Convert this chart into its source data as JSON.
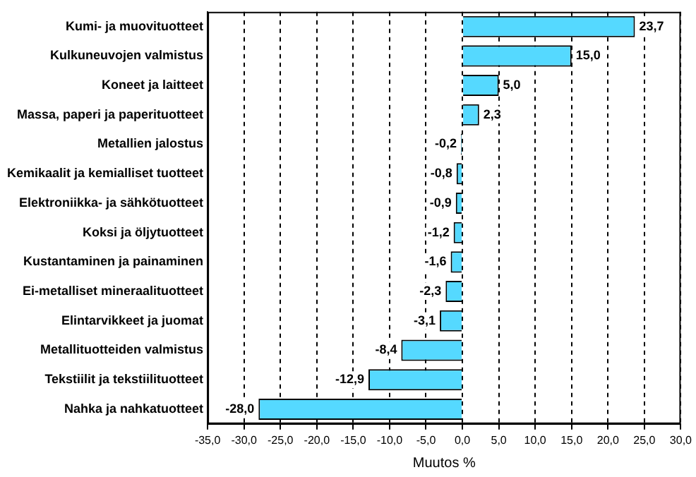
{
  "chart_data": {
    "type": "bar",
    "orientation": "horizontal",
    "xlabel": "Muutos %",
    "categories": [
      "Kumi- ja muovituotteet",
      "Kulkuneuvojen valmistus",
      "Koneet ja laitteet",
      "Massa, paperi ja paperituotteet",
      "Metallien jalostus",
      "Kemikaalit ja kemialliset tuotteet",
      "Elektroniikka- ja sähkötuotteet",
      "Koksi ja öljytuotteet",
      "Kustantaminen ja painaminen",
      "Ei-metalliset mineraalituotteet",
      "Elintarvikkeet ja juomat",
      "Metallituotteiden valmistus",
      "Tekstiilit ja tekstiilituotteet",
      "Nahka ja nahkatuotteet"
    ],
    "values": [
      23.7,
      15.0,
      5.0,
      2.3,
      -0.2,
      -0.8,
      -0.9,
      -1.2,
      -1.6,
      -2.3,
      -3.1,
      -8.4,
      -12.9,
      -28.0
    ],
    "value_labels": [
      "23,7",
      "15,0",
      "5,0",
      "2,3",
      "-0,2",
      "-0,8",
      "-0,9",
      "-1,2",
      "-1,6",
      "-2,3",
      "-3,1",
      "-8,4",
      "-12,9",
      "-28,0"
    ],
    "color": "#55d9ff",
    "xlim": [
      -35,
      30
    ],
    "xticks": [
      {
        "value": -35,
        "label": "-35,0"
      },
      {
        "value": -30,
        "label": "-30,0"
      },
      {
        "value": -25,
        "label": "-25,0"
      },
      {
        "value": -20,
        "label": "-20,0"
      },
      {
        "value": -15,
        "label": "-15,0"
      },
      {
        "value": -10,
        "label": "-10,0"
      },
      {
        "value": -5,
        "label": "-5,0"
      },
      {
        "value": 0,
        "label": "0,0"
      },
      {
        "value": 5,
        "label": "5,0"
      },
      {
        "value": 10,
        "label": "10,0"
      },
      {
        "value": 15,
        "label": "15,0"
      },
      {
        "value": 20,
        "label": "20,0"
      },
      {
        "value": 25,
        "label": "25,0"
      },
      {
        "value": 30,
        "label": "30,0"
      }
    ],
    "grid": "x",
    "legend": false
  }
}
